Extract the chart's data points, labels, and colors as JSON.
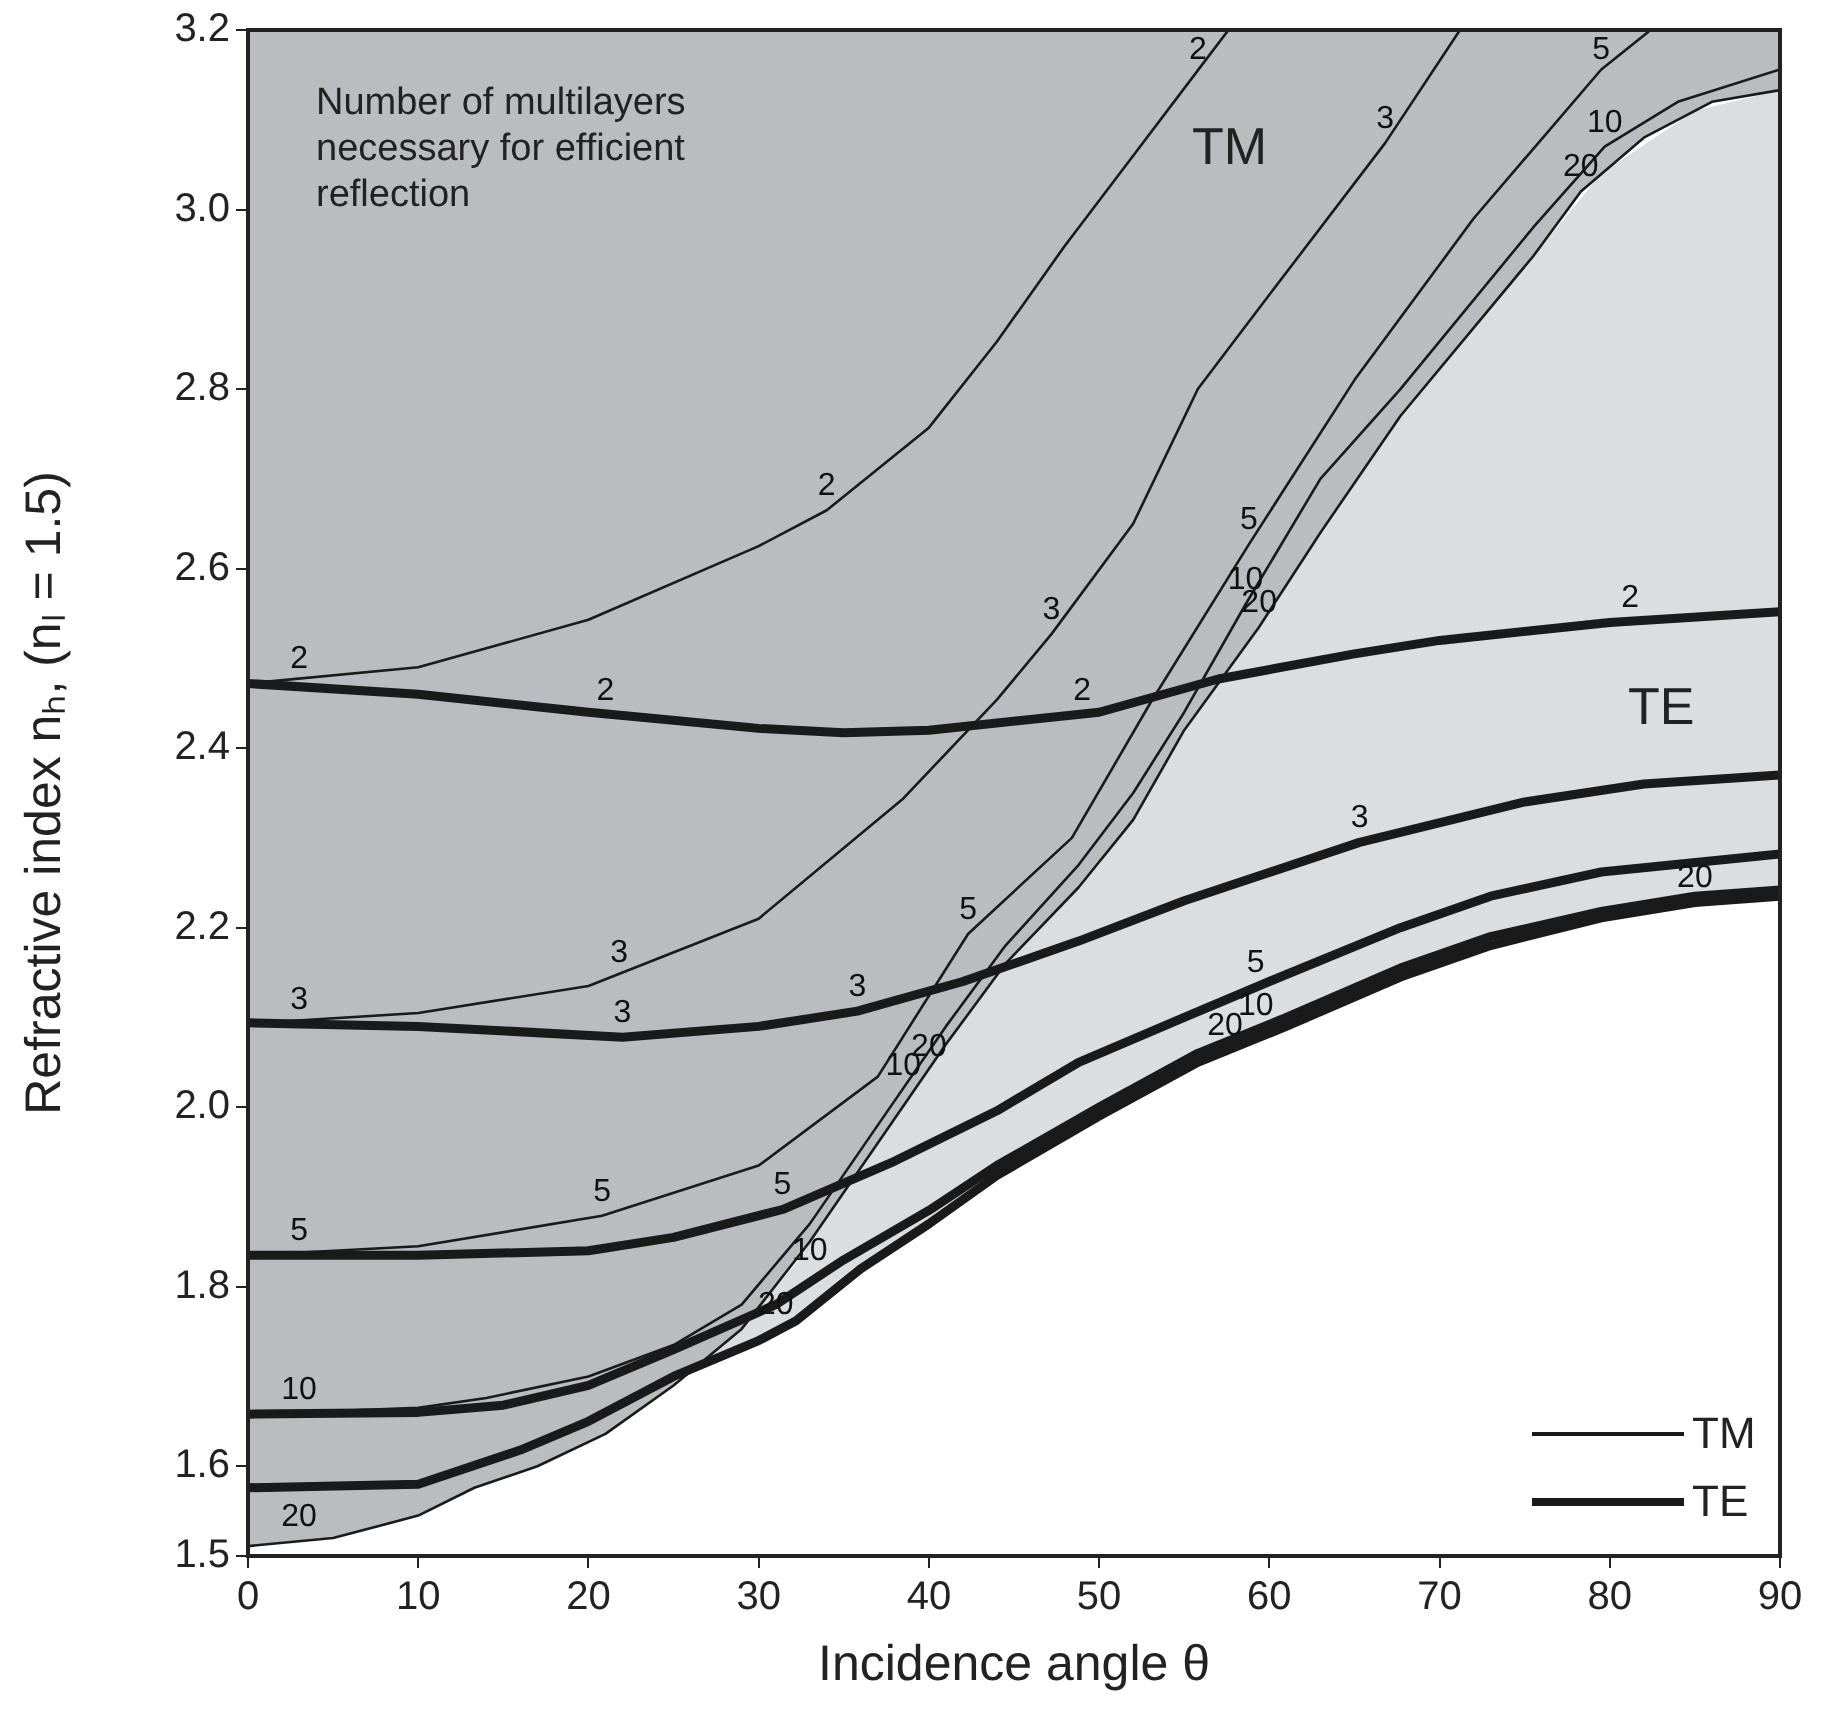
{
  "chart_data": {
    "type": "line",
    "xlabel": "Incidence angle θ",
    "ylabel": "Refractive index nₕ, (nₗ = 1.5)",
    "xlim": [
      0,
      90
    ],
    "xticks": [
      0,
      10,
      20,
      30,
      40,
      50,
      60,
      70,
      80,
      90
    ],
    "ylim": [
      1.5,
      3.2
    ],
    "yticks": [
      1.5,
      1.6,
      1.8,
      {
        "value": 2,
        "label": "2.0"
      },
      2.2,
      2.4,
      2.6,
      2.8,
      {
        "value": 3,
        "label": "3.0"
      },
      3.2
    ],
    "legend": "bottom right",
    "series": [
      {
        "name": "TM",
        "color": "#1a1a1a",
        "x": [
          0,
          10,
          20,
          30,
          34,
          40,
          44,
          48,
          52,
          56,
          57.6
        ],
        "values": [
          2.472,
          2.49,
          2.543,
          2.625,
          2.665,
          2.757,
          2.853,
          2.96,
          3.06,
          3.16,
          3.2
        ]
      },
      {
        "color": "#1a1a1a",
        "x": [
          0,
          10,
          20,
          30,
          38.5,
          44,
          47.2,
          52,
          55.8,
          60,
          66.8,
          71.2
        ],
        "values": [
          2.093,
          2.105,
          2.135,
          2.21,
          2.344,
          2.454,
          2.527,
          2.65,
          2.8,
          2.905,
          3.074,
          3.2
        ]
      },
      {
        "color": "#1a1a1a",
        "x": [
          0,
          10,
          20.8,
          30,
          37,
          42.3,
          48.4,
          53,
          58.8,
          65,
          72,
          79.5,
          82.4
        ],
        "values": [
          1.835,
          1.845,
          1.879,
          1.935,
          2.034,
          2.193,
          2.3,
          2.45,
          2.627,
          2.81,
          2.99,
          3.156,
          3.2
        ]
      },
      {
        "color": "#1a1a1a",
        "x": [
          0,
          10,
          14,
          20,
          25,
          29,
          33,
          37,
          41,
          44.5,
          48.8,
          52,
          55,
          58.6,
          63,
          67.7,
          75.5,
          79.7,
          84,
          90
        ],
        "values": [
          1.658,
          1.665,
          1.676,
          1.7,
          1.735,
          1.78,
          1.87,
          1.98,
          2.09,
          2.18,
          2.27,
          2.35,
          2.44,
          2.56,
          2.7,
          2.8,
          2.98,
          3.07,
          3.12,
          3.156
        ]
      },
      {
        "color": "#1a1a1a",
        "x": [
          0,
          5,
          10,
          13.3,
          17,
          21,
          25,
          29,
          33,
          37,
          41,
          44.5,
          48.8,
          52,
          55,
          59.4,
          63,
          67.7,
          75.5,
          78.3,
          82,
          86,
          90
        ],
        "values": [
          1.511,
          1.52,
          1.545,
          1.576,
          1.6,
          1.636,
          1.69,
          1.753,
          1.85,
          1.96,
          2.07,
          2.16,
          2.245,
          2.32,
          2.42,
          2.535,
          2.64,
          2.77,
          2.948,
          3.02,
          3.08,
          3.12,
          3.133
        ],
        "lower": [
          1.511,
          1.52,
          1.545,
          1.576,
          1.6,
          1.636,
          1.69,
          1.753,
          1.85,
          1.96,
          2.07,
          2.16,
          2.245,
          2.32,
          2.42,
          2.535,
          2.64,
          2.77,
          2.948,
          3.02,
          3.08,
          3.12,
          3.133
        ],
        "upper": [
          3.2,
          3.2,
          3.2,
          3.2,
          3.2,
          3.2,
          3.2,
          3.2,
          3.2,
          3.2,
          3.2,
          3.2,
          3.2,
          3.2,
          3.2,
          3.2,
          3.2,
          3.2,
          3.2,
          3.2,
          3.2,
          3.2,
          3.2
        ]
      },
      {
        "name": "TE",
        "color": "#1a1a1a",
        "x": [
          0,
          10,
          20,
          30,
          35,
          40,
          50,
          57,
          65,
          70,
          80,
          90
        ],
        "values": [
          2.472,
          2.46,
          2.44,
          2.422,
          2.417,
          2.42,
          2.44,
          2.477,
          2.505,
          2.52,
          2.54,
          2.552
        ]
      },
      {
        "color": "#1a1a1a",
        "x": [
          0,
          10,
          22,
          30,
          35.8,
          42,
          48.8,
          55,
          65.3,
          75,
          82,
          90
        ],
        "values": [
          2.094,
          2.09,
          2.078,
          2.09,
          2.107,
          2.14,
          2.185,
          2.23,
          2.295,
          2.34,
          2.36,
          2.37
        ]
      },
      {
        "color": "#1a1a1a",
        "x": [
          0,
          10,
          20,
          25,
          31.4,
          38,
          44,
          48.8,
          55,
          60,
          67.7,
          73,
          79.5,
          90
        ],
        "values": [
          1.835,
          1.835,
          1.84,
          1.855,
          1.886,
          1.94,
          1.996,
          2.05,
          2.1,
          2.14,
          2.2,
          2.235,
          2.262,
          2.282
        ]
      },
      {
        "color": "#1a1a1a",
        "x": [
          0,
          10,
          15,
          20,
          25,
          31,
          35,
          40,
          44,
          50,
          55.8,
          61,
          67.7,
          73,
          79.5,
          85,
          90
        ],
        "values": [
          1.658,
          1.66,
          1.668,
          1.69,
          1.73,
          1.78,
          1.83,
          1.885,
          1.935,
          2.0,
          2.06,
          2.1,
          2.155,
          2.19,
          2.218,
          2.235,
          2.242
        ]
      },
      {
        "color": "#1a1a1a",
        "x": [
          0,
          10,
          16,
          20,
          25,
          30,
          32.2,
          36,
          40,
          44,
          50,
          55.8,
          61,
          67.7,
          73,
          79.5,
          85,
          90
        ],
        "values": [
          1.576,
          1.58,
          1.618,
          1.65,
          1.7,
          1.74,
          1.762,
          1.82,
          1.87,
          1.924,
          1.99,
          2.05,
          2.09,
          2.145,
          2.18,
          2.211,
          2.228,
          2.235
        ],
        "lower": [
          null,
          null,
          null,
          null,
          1.7,
          1.74,
          1.762,
          1.82,
          1.87,
          1.924,
          1.99,
          2.05,
          2.09,
          2.145,
          2.18,
          2.211,
          2.228,
          2.235
        ],
        "upper": [
          null,
          null,
          null,
          null,
          1.7,
          1.777,
          1.826,
          1.93,
          2.043,
          2.147,
          2.27,
          2.44,
          2.58,
          2.77,
          2.89,
          3.04,
          3.11,
          3.133
        ]
      }
    ],
    "annotations": [
      "Number of multilayers necessary for efficient reflection",
      "TM",
      "TE",
      {
        "text": "2",
        "x": 3,
        "y": 2.472
      },
      {
        "text": "3",
        "x": 3,
        "y": 2.093
      },
      {
        "text": "5",
        "x": 3,
        "y": 1.835
      },
      {
        "text": "10",
        "x": 3,
        "y": 1.658
      },
      {
        "text": "20",
        "x": 3,
        "y": 1.516
      },
      {
        "text": "2",
        "x": 34,
        "y": 2.665
      },
      {
        "text": "2",
        "x": 55.8,
        "y": 3.16
      },
      {
        "text": "3",
        "x": 21.8,
        "y": 2.145
      },
      {
        "text": "3",
        "x": 47.2,
        "y": 2.527
      },
      {
        "text": "3",
        "x": 66.8,
        "y": 3.074
      },
      {
        "text": "5",
        "x": 20.8,
        "y": 1.879
      },
      {
        "text": "5",
        "x": 42.3,
        "y": 2.193
      },
      {
        "text": "5",
        "x": 58.8,
        "y": 2.627
      },
      {
        "text": "5",
        "x": 79.5,
        "y": 3.156
      },
      {
        "text": "10",
        "x": 38.5,
        "y": 2.019
      },
      {
        "text": "10",
        "x": 58.6,
        "y": 2.56
      },
      {
        "text": "10",
        "x": 79.7,
        "y": 3.07
      },
      {
        "text": "20",
        "x": 40,
        "y": 2.04
      },
      {
        "text": "20",
        "x": 59.4,
        "y": 2.535
      },
      {
        "text": "20",
        "x": 78.3,
        "y": 3.02
      },
      {
        "text": "2",
        "x": 21,
        "y": 2.437
      },
      {
        "text": "2",
        "x": 49,
        "y": 2.437
      },
      {
        "text": "2",
        "x": 81.2,
        "y": 2.54
      },
      {
        "text": "3",
        "x": 22,
        "y": 2.078
      },
      {
        "text": "3",
        "x": 35.8,
        "y": 2.107
      },
      {
        "text": "3",
        "x": 65.3,
        "y": 2.295
      },
      {
        "text": "5",
        "x": 31.4,
        "y": 1.886
      },
      {
        "text": "5",
        "x": 59.2,
        "y": 2.134
      },
      {
        "text": "10",
        "x": 33,
        "y": 1.813
      },
      {
        "text": "10",
        "x": 59.2,
        "y": 2.086
      },
      {
        "text": "20",
        "x": 31,
        "y": 1.753
      },
      {
        "text": "20",
        "x": 57.4,
        "y": 2.064
      },
      {
        "text": "20",
        "x": 85,
        "y": 2.228
      }
    ]
  }
}
